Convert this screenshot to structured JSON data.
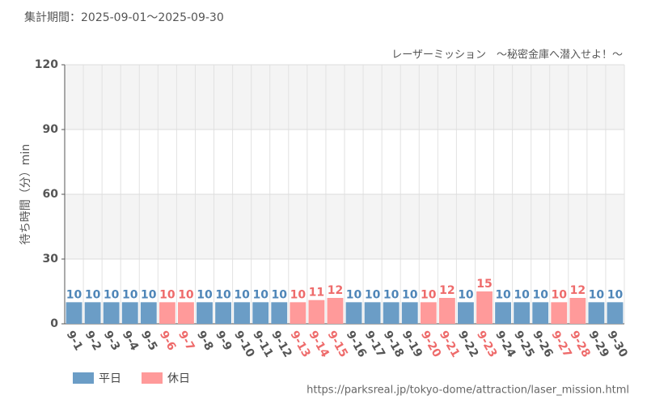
{
  "chart_data": {
    "type": "bar",
    "title": "集計期間：2025-09-01～2025-09-30",
    "subtitle": "レーザーミッション　～秘密金庫へ潜入せよ！～",
    "y_label": "待ち時間（分）min",
    "source": "https://parksreal.jp/tokyo-dome/attraction/laser_mission.html",
    "categories": [
      "9-1",
      "9-2",
      "9-3",
      "9-4",
      "9-5",
      "9-6",
      "9-7",
      "9-8",
      "9-9",
      "9-10",
      "9-11",
      "9-12",
      "9-13",
      "9-14",
      "9-15",
      "9-16",
      "9-17",
      "9-18",
      "9-19",
      "9-20",
      "9-21",
      "9-22",
      "9-23",
      "9-24",
      "9-25",
      "9-26",
      "9-27",
      "9-28",
      "9-29",
      "9-30"
    ],
    "series": [
      {
        "name": "平日",
        "color": "#6b9dc6",
        "label_color": "#4f86b8",
        "values": [
          10,
          10,
          10,
          10,
          10,
          null,
          null,
          10,
          10,
          10,
          10,
          10,
          null,
          null,
          null,
          10,
          10,
          10,
          10,
          null,
          null,
          10,
          null,
          10,
          10,
          10,
          null,
          null,
          10,
          10
        ]
      },
      {
        "name": "休日",
        "color": "#ff9a9a",
        "label_color": "#ee6b6b",
        "values": [
          null,
          null,
          null,
          null,
          null,
          10,
          10,
          null,
          null,
          null,
          null,
          null,
          10,
          11,
          12,
          null,
          null,
          null,
          null,
          10,
          12,
          null,
          15,
          null,
          null,
          null,
          10,
          12,
          null,
          null
        ]
      }
    ],
    "ylim": [
      0,
      120
    ],
    "yticks": [
      0,
      30,
      60,
      90,
      120
    ],
    "grid": true
  }
}
